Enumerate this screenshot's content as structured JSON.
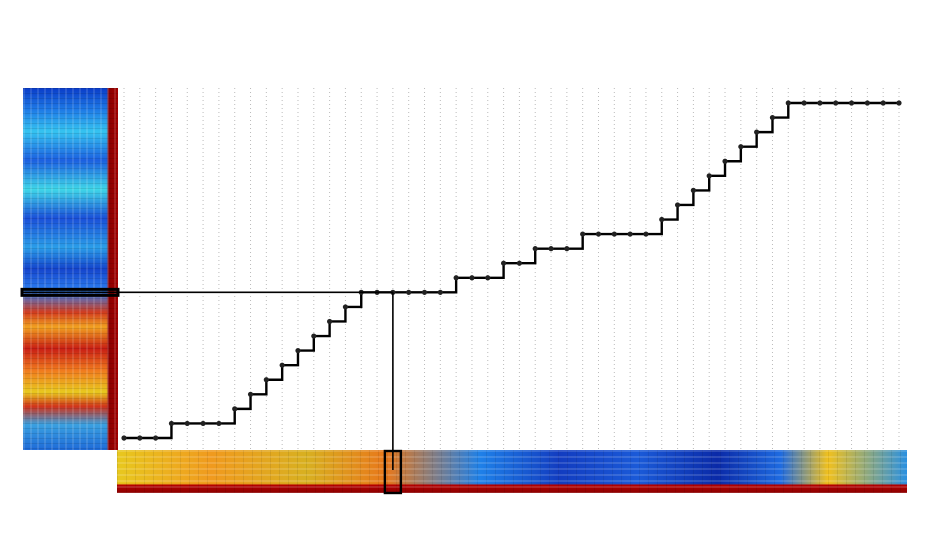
{
  "chart_data": {
    "type": "line",
    "title": "",
    "xlabel": "",
    "ylabel": "",
    "grid": "vertical-dotted",
    "x": [
      0,
      1,
      2,
      3,
      4,
      5,
      6,
      7,
      8,
      9,
      10,
      11,
      12,
      13,
      14,
      15,
      16,
      17,
      18,
      19,
      20,
      21,
      22,
      23,
      24,
      25,
      26,
      27,
      28,
      29,
      30,
      31,
      32,
      33,
      34,
      35,
      36,
      37,
      38,
      39,
      40,
      41,
      42,
      43,
      44,
      45,
      46,
      47,
      48,
      49
    ],
    "series": [
      {
        "values": [
          0,
          0,
          0,
          1,
          1,
          1,
          1,
          2,
          3,
          4,
          5,
          6,
          7,
          8,
          9,
          10,
          10,
          10,
          10,
          10,
          10,
          11,
          11,
          11,
          12,
          12,
          13,
          13,
          13,
          14,
          14,
          14,
          14,
          14,
          15,
          16,
          17,
          18,
          19,
          20,
          21,
          22,
          23,
          23,
          23,
          23,
          23,
          23,
          23,
          23
        ]
      }
    ],
    "xlim": [
      0,
      49
    ],
    "ylim": [
      0,
      23
    ],
    "highlight_index": 17,
    "colors": {
      "line": "#000000",
      "marker": "#222222",
      "grid": "#bbbbbb",
      "frame": "#000000"
    }
  }
}
